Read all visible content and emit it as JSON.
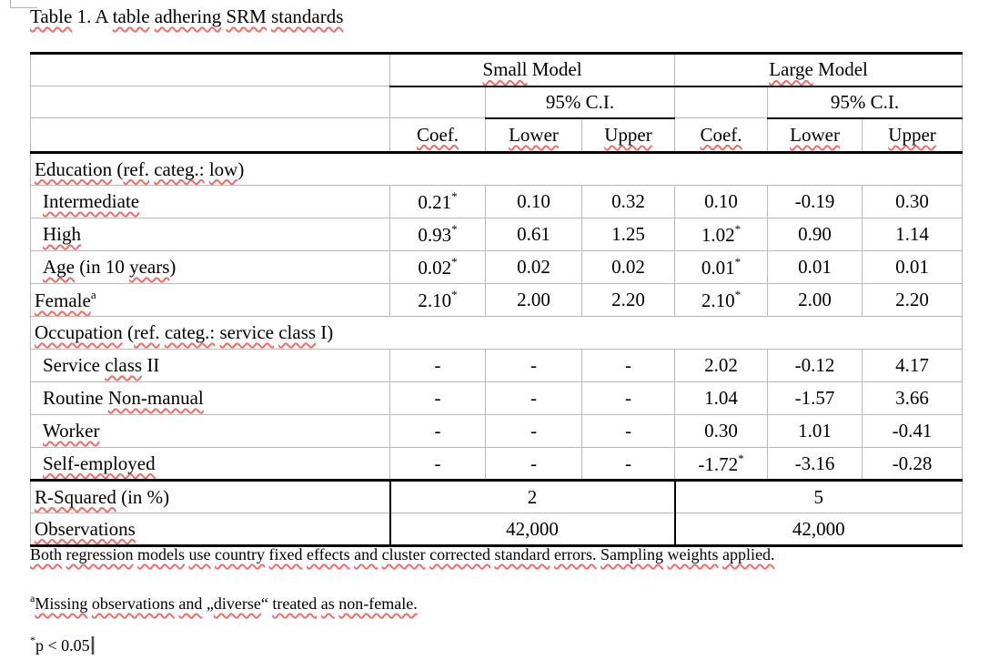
{
  "title_segments": [
    [
      "Table",
      1
    ],
    [
      " 1. A ",
      0
    ],
    [
      "table",
      1
    ],
    [
      " ",
      0
    ],
    [
      "adhering",
      1
    ],
    [
      " ",
      0
    ],
    [
      "SRM",
      1
    ],
    [
      " ",
      0
    ],
    [
      "standards",
      1
    ]
  ],
  "colors": {
    "squiggle": "#f26d65",
    "gridline": "#b9b9b9",
    "border": "#000000",
    "background": "#ffffff"
  },
  "table": {
    "header": {
      "small_model": [
        [
          "Small",
          1
        ],
        [
          " Model",
          0
        ]
      ],
      "large_model": [
        [
          "Large",
          1
        ],
        [
          " Model",
          0
        ]
      ],
      "ci": "95% C.I.",
      "coef": [
        [
          "Coef.",
          1
        ]
      ],
      "lower": [
        [
          "Lower",
          1
        ]
      ],
      "upper": [
        [
          "Upper",
          1
        ]
      ]
    },
    "rows": [
      {
        "type": "section",
        "label": [
          [
            "Education",
            1
          ],
          [
            " (",
            0
          ],
          [
            "ref.",
            1
          ],
          [
            " ",
            0
          ],
          [
            "categ.:",
            1
          ],
          [
            " ",
            0
          ],
          [
            "low",
            1
          ],
          [
            ")",
            0
          ]
        ]
      },
      {
        "type": "data",
        "indent": true,
        "label": [
          [
            "Intermediate",
            1
          ]
        ],
        "cells": [
          {
            "v": "0.21",
            "s": 1
          },
          {
            "v": "0.10"
          },
          {
            "v": "0.32"
          },
          {
            "v": "0.10"
          },
          {
            "v": "-0.19"
          },
          {
            "v": "0.30"
          }
        ]
      },
      {
        "type": "data",
        "indent": true,
        "label": [
          [
            "High",
            1
          ]
        ],
        "cells": [
          {
            "v": "0.93",
            "s": 1
          },
          {
            "v": "0.61"
          },
          {
            "v": "1.25"
          },
          {
            "v": "1.02",
            "s": 1
          },
          {
            "v": "0.90"
          },
          {
            "v": "1.14"
          }
        ]
      },
      {
        "type": "data",
        "indent": true,
        "label": [
          [
            "Age",
            1
          ],
          [
            " (in 10 ",
            0
          ],
          [
            "years",
            1
          ],
          [
            ")",
            0
          ]
        ],
        "cells": [
          {
            "v": "0.02",
            "s": 1
          },
          {
            "v": "0.02"
          },
          {
            "v": "0.02"
          },
          {
            "v": "0.01",
            "s": 1
          },
          {
            "v": "0.01"
          },
          {
            "v": "0.01"
          }
        ]
      },
      {
        "type": "data",
        "indent": false,
        "label": [
          [
            "Female",
            1
          ]
        ],
        "sup": "a",
        "cells": [
          {
            "v": "2.10",
            "s": 1
          },
          {
            "v": "2.00"
          },
          {
            "v": "2.20"
          },
          {
            "v": "2.10",
            "s": 1
          },
          {
            "v": "2.00"
          },
          {
            "v": "2.20"
          }
        ]
      },
      {
        "type": "section",
        "label": [
          [
            "Occupation",
            1
          ],
          [
            " (",
            0
          ],
          [
            "ref.",
            1
          ],
          [
            " ",
            0
          ],
          [
            "categ.:",
            1
          ],
          [
            " ",
            0
          ],
          [
            "service",
            1
          ],
          [
            " ",
            0
          ],
          [
            "class",
            1
          ],
          [
            " I)",
            0
          ]
        ]
      },
      {
        "type": "data",
        "indent": true,
        "label": [
          [
            "Service ",
            0
          ],
          [
            "class",
            1
          ],
          [
            " II",
            0
          ]
        ],
        "cells": [
          {
            "v": "-"
          },
          {
            "v": "-"
          },
          {
            "v": "-"
          },
          {
            "v": "2.02"
          },
          {
            "v": "-0.12"
          },
          {
            "v": "4.17"
          }
        ]
      },
      {
        "type": "data",
        "indent": true,
        "label": [
          [
            "Routine ",
            0
          ],
          [
            "Non-manual",
            1
          ]
        ],
        "cells": [
          {
            "v": "-"
          },
          {
            "v": "-"
          },
          {
            "v": "-"
          },
          {
            "v": "1.04"
          },
          {
            "v": "-1.57"
          },
          {
            "v": "3.66"
          }
        ]
      },
      {
        "type": "data",
        "indent": true,
        "label": [
          [
            "Worker",
            1
          ]
        ],
        "cells": [
          {
            "v": "-"
          },
          {
            "v": "-"
          },
          {
            "v": "-"
          },
          {
            "v": "0.30"
          },
          {
            "v": "1.01"
          },
          {
            "v": "-0.41"
          }
        ]
      },
      {
        "type": "data",
        "indent": true,
        "label": [
          [
            "Self-employed",
            1
          ]
        ],
        "thick": true,
        "cells": [
          {
            "v": "-"
          },
          {
            "v": "-"
          },
          {
            "v": "-"
          },
          {
            "v": "-1.72",
            "s": 1
          },
          {
            "v": "-3.16"
          },
          {
            "v": "-0.28"
          }
        ]
      },
      {
        "type": "span2",
        "label": [
          [
            "R-Squared",
            1
          ],
          [
            " (in %)",
            0
          ]
        ],
        "small": "2",
        "large": "5"
      },
      {
        "type": "span2",
        "label": [
          [
            "Observations",
            1
          ]
        ],
        "small": "42,000",
        "large": "42,000",
        "thick": true
      }
    ]
  },
  "footnotes": [
    {
      "segments": [
        [
          "Both",
          1
        ],
        [
          " ",
          0
        ],
        [
          "regression",
          1
        ],
        [
          " ",
          0
        ],
        [
          "models",
          1
        ],
        [
          " ",
          0
        ],
        [
          "use",
          1
        ],
        [
          " ",
          0
        ],
        [
          "country",
          1
        ],
        [
          " ",
          0
        ],
        [
          "fixed",
          1
        ],
        [
          " ",
          0
        ],
        [
          "effects",
          1
        ],
        [
          " ",
          0
        ],
        [
          "and",
          1
        ],
        [
          " ",
          0
        ],
        [
          "cluster",
          1
        ],
        [
          " ",
          0
        ],
        [
          "corrected",
          1
        ],
        [
          " ",
          0
        ],
        [
          "standard",
          1
        ],
        [
          " ",
          0
        ],
        [
          "errors.",
          1
        ],
        [
          " ",
          0
        ],
        [
          "Sampling",
          1
        ],
        [
          " ",
          0
        ],
        [
          "weights",
          1
        ],
        [
          " ",
          0
        ],
        [
          "applied.",
          1
        ]
      ]
    },
    {
      "sup": "a",
      "segments": [
        [
          "Missing",
          1
        ],
        [
          " ",
          0
        ],
        [
          "observations",
          1
        ],
        [
          " ",
          0
        ],
        [
          "and",
          1
        ],
        [
          " „",
          0
        ],
        [
          "diverse",
          1
        ],
        [
          "“ ",
          0
        ],
        [
          "treated",
          1
        ],
        [
          " ",
          0
        ],
        [
          "as",
          1
        ],
        [
          " ",
          0
        ],
        [
          "non-female.",
          1
        ]
      ]
    },
    {
      "sup": "*",
      "segments": [
        [
          "p < 0.05",
          0
        ]
      ],
      "caret": true
    }
  ]
}
